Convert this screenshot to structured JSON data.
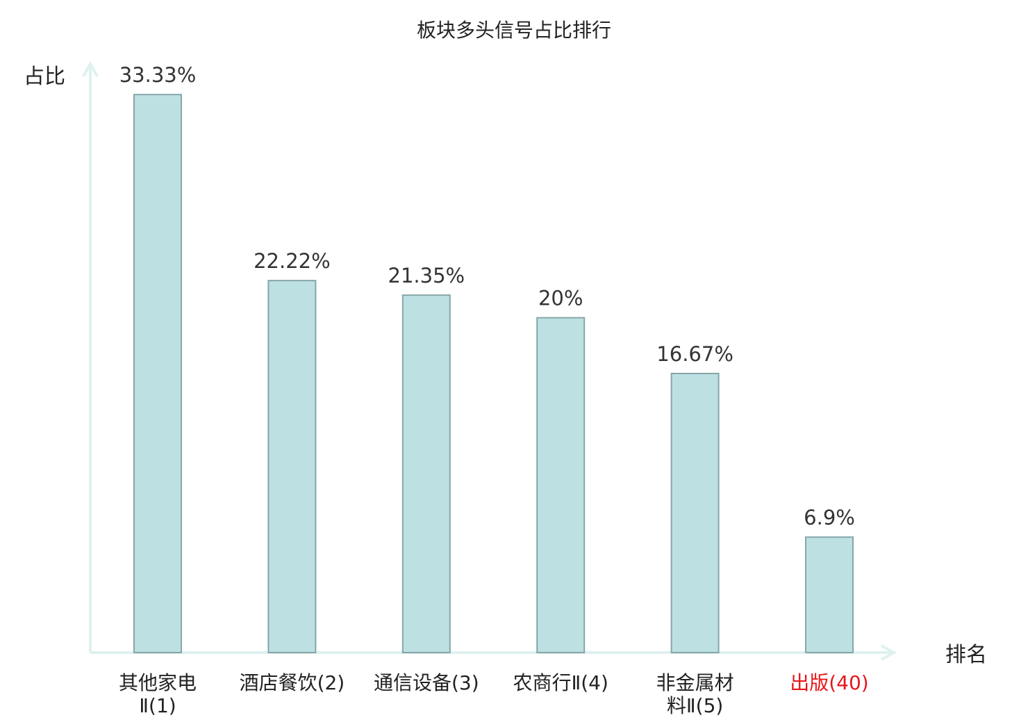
{
  "chart_data": {
    "type": "bar",
    "title": "板块多头信号占比排行",
    "xlabel": "排名",
    "ylabel": "占比",
    "categories": [
      [
        "其他家电",
        "Ⅱ(1)"
      ],
      [
        "酒店餐饮(2)"
      ],
      [
        "通信设备(3)"
      ],
      [
        "农商行Ⅱ(4)"
      ],
      [
        "非金属材",
        "料Ⅱ(5)"
      ],
      [
        "出版(40)"
      ]
    ],
    "values": [
      33.33,
      22.22,
      21.35,
      20,
      16.67,
      6.9
    ],
    "value_labels": [
      "33.33%",
      "22.22%",
      "21.35%",
      "20%",
      "16.67%",
      "6.9%"
    ],
    "highlight_index": 5,
    "ylim": [
      0,
      34.5
    ],
    "grid": false,
    "colors": {
      "bar_fill": "#bde0e3",
      "bar_stroke": "#86a6a9",
      "axis": "#dff1ef",
      "category_text": "#222222",
      "highlight_text": "#e8161b"
    }
  }
}
